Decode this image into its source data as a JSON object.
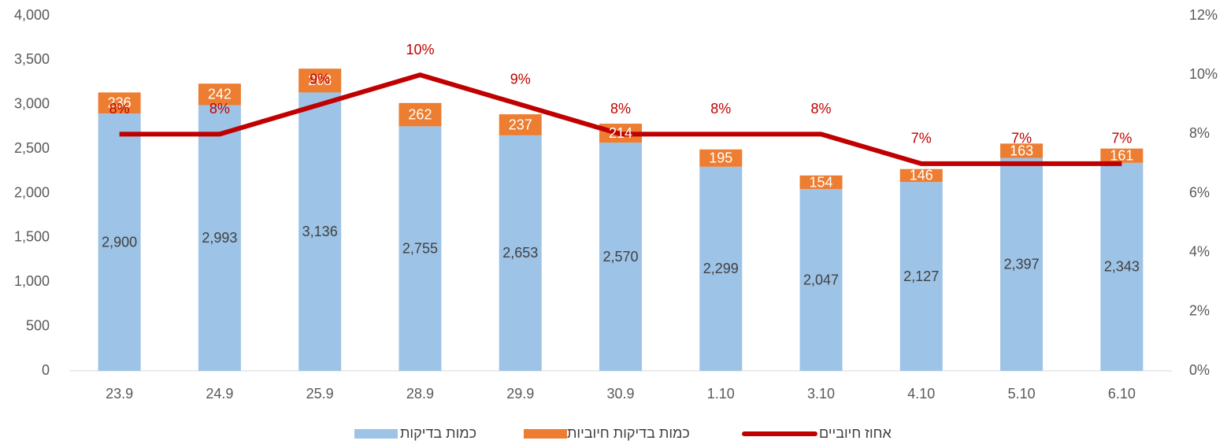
{
  "chart_data": {
    "type": "bar_line",
    "categories": [
      "23.9",
      "24.9",
      "25.9",
      "28.9",
      "29.9",
      "30.9",
      "1.10",
      "3.10",
      "4.10",
      "5.10",
      "6.10"
    ],
    "series": [
      {
        "name": "כמות בדיקות",
        "color": "#9dc3e6",
        "type": "bar",
        "values": [
          2900,
          2993,
          3136,
          2755,
          2653,
          2570,
          2299,
          2047,
          2127,
          2397,
          2343
        ],
        "value_labels": [
          "2,900",
          "2,993",
          "3,136",
          "2,755",
          "2,653",
          "2,570",
          "2,299",
          "2,047",
          "2,127",
          "2,397",
          "2,343"
        ]
      },
      {
        "name": "כמות בדיקות חיוביות",
        "color": "#ed7d31",
        "type": "bar",
        "values": [
          236,
          242,
          268,
          262,
          237,
          214,
          195,
          154,
          146,
          163,
          161
        ]
      },
      {
        "name": "אחוז חיוביים",
        "color": "#c00000",
        "type": "line",
        "axis": "y2",
        "values": [
          8,
          8,
          9,
          10,
          9,
          8,
          8,
          8,
          7,
          7,
          7
        ],
        "value_labels": [
          "8%",
          "8%",
          "9%",
          "10%",
          "9%",
          "8%",
          "8%",
          "8%",
          "7%",
          "7%",
          "7%"
        ]
      }
    ],
    "stacked": true,
    "ylim": [
      0,
      4000
    ],
    "yticks": [
      0,
      500,
      {
        "value": 1000,
        "label": "1,000"
      },
      {
        "value": 1500,
        "label": "1,500"
      },
      {
        "value": 2000,
        "label": "2,000"
      },
      {
        "value": 2500,
        "label": "2,500"
      },
      {
        "value": 3000,
        "label": "3,000"
      },
      {
        "value": 3500,
        "label": "3,500"
      },
      {
        "value": 4000,
        "label": "4,000"
      }
    ],
    "y2lim": [
      0,
      12
    ],
    "y2ticks": [
      {
        "value": 0,
        "label": "0%"
      },
      {
        "value": 2,
        "label": "2%"
      },
      {
        "value": 4,
        "label": "4%"
      },
      {
        "value": 6,
        "label": "6%"
      },
      {
        "value": 8,
        "label": "8%"
      },
      {
        "value": 10,
        "label": "10%"
      },
      {
        "value": 12,
        "label": "12%"
      }
    ],
    "legend": "bottom"
  }
}
